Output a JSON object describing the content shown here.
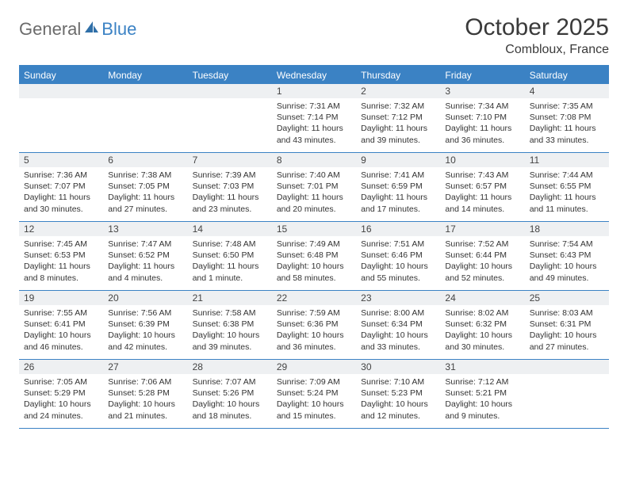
{
  "logo": {
    "general": "General",
    "blue": "Blue"
  },
  "title": "October 2025",
  "location": "Combloux, France",
  "colors": {
    "accent": "#3b82c4",
    "header_bg": "#eef0f2",
    "text": "#333333",
    "logo_gray": "#6b6b6b"
  },
  "days_of_week": [
    "Sunday",
    "Monday",
    "Tuesday",
    "Wednesday",
    "Thursday",
    "Friday",
    "Saturday"
  ],
  "weeks": [
    [
      {
        "n": "",
        "sr": "",
        "ss": "",
        "dl": ""
      },
      {
        "n": "",
        "sr": "",
        "ss": "",
        "dl": ""
      },
      {
        "n": "",
        "sr": "",
        "ss": "",
        "dl": ""
      },
      {
        "n": "1",
        "sr": "Sunrise: 7:31 AM",
        "ss": "Sunset: 7:14 PM",
        "dl": "Daylight: 11 hours and 43 minutes."
      },
      {
        "n": "2",
        "sr": "Sunrise: 7:32 AM",
        "ss": "Sunset: 7:12 PM",
        "dl": "Daylight: 11 hours and 39 minutes."
      },
      {
        "n": "3",
        "sr": "Sunrise: 7:34 AM",
        "ss": "Sunset: 7:10 PM",
        "dl": "Daylight: 11 hours and 36 minutes."
      },
      {
        "n": "4",
        "sr": "Sunrise: 7:35 AM",
        "ss": "Sunset: 7:08 PM",
        "dl": "Daylight: 11 hours and 33 minutes."
      }
    ],
    [
      {
        "n": "5",
        "sr": "Sunrise: 7:36 AM",
        "ss": "Sunset: 7:07 PM",
        "dl": "Daylight: 11 hours and 30 minutes."
      },
      {
        "n": "6",
        "sr": "Sunrise: 7:38 AM",
        "ss": "Sunset: 7:05 PM",
        "dl": "Daylight: 11 hours and 27 minutes."
      },
      {
        "n": "7",
        "sr": "Sunrise: 7:39 AM",
        "ss": "Sunset: 7:03 PM",
        "dl": "Daylight: 11 hours and 23 minutes."
      },
      {
        "n": "8",
        "sr": "Sunrise: 7:40 AM",
        "ss": "Sunset: 7:01 PM",
        "dl": "Daylight: 11 hours and 20 minutes."
      },
      {
        "n": "9",
        "sr": "Sunrise: 7:41 AM",
        "ss": "Sunset: 6:59 PM",
        "dl": "Daylight: 11 hours and 17 minutes."
      },
      {
        "n": "10",
        "sr": "Sunrise: 7:43 AM",
        "ss": "Sunset: 6:57 PM",
        "dl": "Daylight: 11 hours and 14 minutes."
      },
      {
        "n": "11",
        "sr": "Sunrise: 7:44 AM",
        "ss": "Sunset: 6:55 PM",
        "dl": "Daylight: 11 hours and 11 minutes."
      }
    ],
    [
      {
        "n": "12",
        "sr": "Sunrise: 7:45 AM",
        "ss": "Sunset: 6:53 PM",
        "dl": "Daylight: 11 hours and 8 minutes."
      },
      {
        "n": "13",
        "sr": "Sunrise: 7:47 AM",
        "ss": "Sunset: 6:52 PM",
        "dl": "Daylight: 11 hours and 4 minutes."
      },
      {
        "n": "14",
        "sr": "Sunrise: 7:48 AM",
        "ss": "Sunset: 6:50 PM",
        "dl": "Daylight: 11 hours and 1 minute."
      },
      {
        "n": "15",
        "sr": "Sunrise: 7:49 AM",
        "ss": "Sunset: 6:48 PM",
        "dl": "Daylight: 10 hours and 58 minutes."
      },
      {
        "n": "16",
        "sr": "Sunrise: 7:51 AM",
        "ss": "Sunset: 6:46 PM",
        "dl": "Daylight: 10 hours and 55 minutes."
      },
      {
        "n": "17",
        "sr": "Sunrise: 7:52 AM",
        "ss": "Sunset: 6:44 PM",
        "dl": "Daylight: 10 hours and 52 minutes."
      },
      {
        "n": "18",
        "sr": "Sunrise: 7:54 AM",
        "ss": "Sunset: 6:43 PM",
        "dl": "Daylight: 10 hours and 49 minutes."
      }
    ],
    [
      {
        "n": "19",
        "sr": "Sunrise: 7:55 AM",
        "ss": "Sunset: 6:41 PM",
        "dl": "Daylight: 10 hours and 46 minutes."
      },
      {
        "n": "20",
        "sr": "Sunrise: 7:56 AM",
        "ss": "Sunset: 6:39 PM",
        "dl": "Daylight: 10 hours and 42 minutes."
      },
      {
        "n": "21",
        "sr": "Sunrise: 7:58 AM",
        "ss": "Sunset: 6:38 PM",
        "dl": "Daylight: 10 hours and 39 minutes."
      },
      {
        "n": "22",
        "sr": "Sunrise: 7:59 AM",
        "ss": "Sunset: 6:36 PM",
        "dl": "Daylight: 10 hours and 36 minutes."
      },
      {
        "n": "23",
        "sr": "Sunrise: 8:00 AM",
        "ss": "Sunset: 6:34 PM",
        "dl": "Daylight: 10 hours and 33 minutes."
      },
      {
        "n": "24",
        "sr": "Sunrise: 8:02 AM",
        "ss": "Sunset: 6:32 PM",
        "dl": "Daylight: 10 hours and 30 minutes."
      },
      {
        "n": "25",
        "sr": "Sunrise: 8:03 AM",
        "ss": "Sunset: 6:31 PM",
        "dl": "Daylight: 10 hours and 27 minutes."
      }
    ],
    [
      {
        "n": "26",
        "sr": "Sunrise: 7:05 AM",
        "ss": "Sunset: 5:29 PM",
        "dl": "Daylight: 10 hours and 24 minutes."
      },
      {
        "n": "27",
        "sr": "Sunrise: 7:06 AM",
        "ss": "Sunset: 5:28 PM",
        "dl": "Daylight: 10 hours and 21 minutes."
      },
      {
        "n": "28",
        "sr": "Sunrise: 7:07 AM",
        "ss": "Sunset: 5:26 PM",
        "dl": "Daylight: 10 hours and 18 minutes."
      },
      {
        "n": "29",
        "sr": "Sunrise: 7:09 AM",
        "ss": "Sunset: 5:24 PM",
        "dl": "Daylight: 10 hours and 15 minutes."
      },
      {
        "n": "30",
        "sr": "Sunrise: 7:10 AM",
        "ss": "Sunset: 5:23 PM",
        "dl": "Daylight: 10 hours and 12 minutes."
      },
      {
        "n": "31",
        "sr": "Sunrise: 7:12 AM",
        "ss": "Sunset: 5:21 PM",
        "dl": "Daylight: 10 hours and 9 minutes."
      },
      {
        "n": "",
        "sr": "",
        "ss": "",
        "dl": ""
      }
    ]
  ]
}
